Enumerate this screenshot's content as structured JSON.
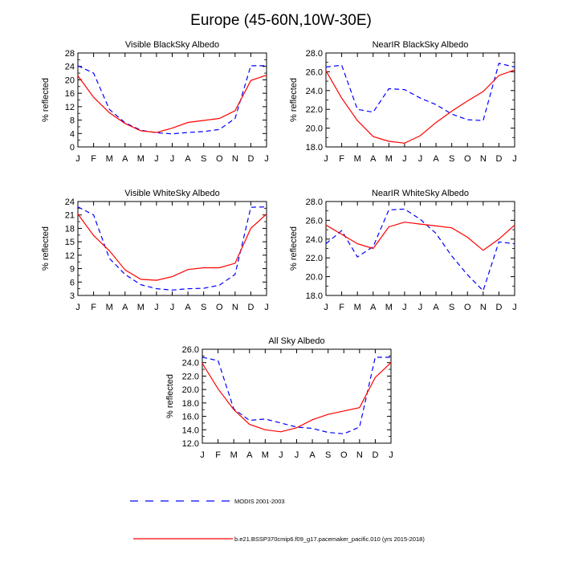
{
  "figure": {
    "title": "Europe (45-60N,10W-30E)",
    "legend": [
      {
        "label": "MODIS 2001-2003",
        "color": "#0000ff",
        "dash": true
      },
      {
        "label": "b.e21.BSSP370cmip6.f09_g17.pacemaker_pacific.010 (yrs 2015-2018)",
        "color": "#ff0000",
        "dash": false
      }
    ]
  },
  "chart_data": [
    {
      "type": "line",
      "title": "Visible BlackSky Albedo",
      "ylabel": "% reflected",
      "categories": [
        "J",
        "F",
        "M",
        "A",
        "M",
        "J",
        "J",
        "A",
        "S",
        "O",
        "N",
        "D",
        "J"
      ],
      "ylim": [
        0,
        28
      ],
      "yticks": [
        "0",
        "4",
        "8",
        "12",
        "16",
        "20",
        "24",
        "28"
      ],
      "series": [
        {
          "color": "#0000ff",
          "dash": true,
          "values": [
            24.2,
            22.0,
            11.2,
            7.2,
            5.0,
            4.2,
            3.9,
            4.3,
            4.6,
            5.2,
            8.5,
            24.2,
            24.2
          ]
        },
        {
          "color": "#ff0000",
          "dash": false,
          "values": [
            21.2,
            14.8,
            10.2,
            7.0,
            4.8,
            4.3,
            5.6,
            7.3,
            7.9,
            8.5,
            10.8,
            19.8,
            21.4
          ]
        }
      ]
    },
    {
      "type": "line",
      "title": "NearIR BlackSky Albedo",
      "ylabel": "% reflected",
      "categories": [
        "J",
        "F",
        "M",
        "A",
        "M",
        "J",
        "J",
        "A",
        "S",
        "O",
        "N",
        "D",
        "J"
      ],
      "ylim": [
        18,
        28
      ],
      "yticks": [
        "18.0",
        "20.0",
        "22.0",
        "24.0",
        "26.0",
        "28.0"
      ],
      "series": [
        {
          "color": "#0000ff",
          "dash": true,
          "values": [
            26.5,
            26.7,
            22.0,
            21.7,
            24.2,
            24.1,
            23.2,
            22.5,
            21.5,
            20.9,
            20.8,
            26.9,
            26.5
          ]
        },
        {
          "color": "#ff0000",
          "dash": false,
          "values": [
            26.1,
            23.2,
            20.8,
            19.1,
            18.6,
            18.4,
            19.2,
            20.6,
            21.8,
            22.9,
            23.9,
            25.6,
            26.2
          ]
        }
      ]
    },
    {
      "type": "line",
      "title": "Visible WhiteSky Albedo",
      "ylabel": "% reflected",
      "categories": [
        "J",
        "F",
        "M",
        "A",
        "M",
        "J",
        "J",
        "A",
        "S",
        "O",
        "N",
        "D",
        "J"
      ],
      "ylim": [
        3,
        24
      ],
      "yticks": [
        "3",
        "6",
        "9",
        "12",
        "15",
        "18",
        "21",
        "24"
      ],
      "series": [
        {
          "color": "#0000ff",
          "dash": true,
          "values": [
            22.8,
            21.0,
            11.3,
            7.7,
            5.4,
            4.5,
            4.2,
            4.5,
            4.6,
            5.3,
            7.7,
            22.7,
            22.8
          ]
        },
        {
          "color": "#ff0000",
          "dash": false,
          "values": [
            21.2,
            16.4,
            13.0,
            8.7,
            6.6,
            6.4,
            7.2,
            8.8,
            9.2,
            9.2,
            10.2,
            18.0,
            21.2
          ]
        }
      ]
    },
    {
      "type": "line",
      "title": "NearIR WhiteSky Albedo",
      "ylabel": "% reflected",
      "categories": [
        "J",
        "F",
        "M",
        "A",
        "M",
        "J",
        "J",
        "A",
        "S",
        "O",
        "N",
        "D",
        "J"
      ],
      "ylim": [
        18,
        28
      ],
      "yticks": [
        "18.0",
        "20.0",
        "22.0",
        "24.0",
        "26.0",
        "28.0"
      ],
      "series": [
        {
          "color": "#0000ff",
          "dash": true,
          "values": [
            23.5,
            24.9,
            22.1,
            23.2,
            27.1,
            27.2,
            26.1,
            24.6,
            22.2,
            20.2,
            18.5,
            23.7,
            23.5
          ]
        },
        {
          "color": "#ff0000",
          "dash": false,
          "values": [
            25.5,
            24.5,
            23.5,
            23.0,
            25.3,
            25.8,
            25.6,
            25.4,
            25.2,
            24.2,
            22.8,
            24.0,
            25.5
          ]
        }
      ]
    },
    {
      "type": "line",
      "title": "All Sky Albedo",
      "ylabel": "% reflected",
      "categories": [
        "J",
        "F",
        "M",
        "A",
        "M",
        "J",
        "J",
        "A",
        "S",
        "O",
        "N",
        "D",
        "J"
      ],
      "ylim": [
        12,
        26
      ],
      "yticks": [
        "12.0",
        "14.0",
        "16.0",
        "18.0",
        "20.0",
        "22.0",
        "24.0",
        "26.0"
      ],
      "series": [
        {
          "color": "#0000ff",
          "dash": true,
          "values": [
            24.8,
            24.3,
            17.1,
            15.4,
            15.6,
            15.0,
            14.4,
            14.2,
            13.6,
            13.4,
            14.4,
            24.8,
            24.8
          ]
        },
        {
          "color": "#ff0000",
          "dash": false,
          "values": [
            23.9,
            20.1,
            17.0,
            14.8,
            14.0,
            13.7,
            14.3,
            15.5,
            16.3,
            16.8,
            17.3,
            21.8,
            24.0
          ]
        }
      ]
    }
  ]
}
